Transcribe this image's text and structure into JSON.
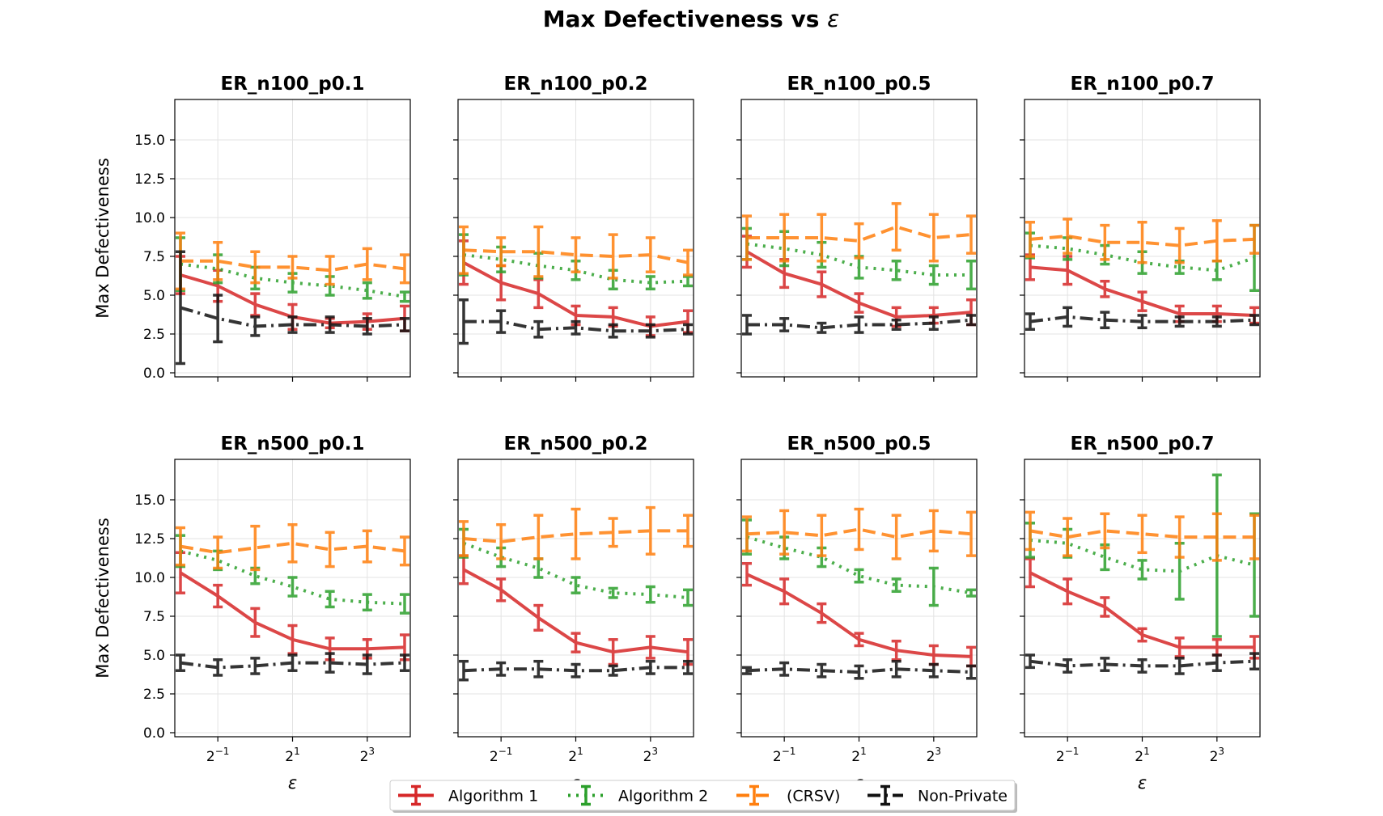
{
  "figure": {
    "suptitle_text": "Max Defectiveness vs ",
    "suptitle_symbol": "ε"
  },
  "colors": {
    "Algorithm 1": "#d62728",
    "Algorithm 2": "#2ca02c",
    "(CRSV)": "#ff7f0e",
    "Non-Private": "#111111",
    "grid": "#e3e3e3"
  },
  "legend": {
    "placement": "bottom-center",
    "entries": [
      {
        "label": "Algorithm 1",
        "dash": "solid"
      },
      {
        "label": "Algorithm 2",
        "dash": "dotted"
      },
      {
        "label": "(CRSV)",
        "dash": "dashed"
      },
      {
        "label": "Non-Private",
        "dash": "dashdot"
      }
    ]
  },
  "chart_data": [
    {
      "type": "line",
      "title": "ER_n100_p0.1",
      "xlabel": "ε",
      "ylabel": "Max Defectiveness",
      "x_log2": [
        -2,
        -1,
        0,
        1,
        2,
        3,
        4
      ],
      "xtick_exponents": [
        -1,
        1,
        3
      ],
      "ylim": [
        0,
        17.5
      ],
      "yticks": [
        "0.0",
        "2.5",
        "5.0",
        "7.5",
        "10.0",
        "12.5",
        "15.0"
      ],
      "grid": true,
      "series": [
        {
          "name": "Algorithm 1",
          "values": [
            6.3,
            5.6,
            4.4,
            3.6,
            3.2,
            3.3,
            3.5
          ],
          "err": [
            1.2,
            1.0,
            0.7,
            0.8,
            0.3,
            0.5,
            0.8
          ]
        },
        {
          "name": "Algorithm 2",
          "values": [
            7.0,
            6.7,
            6.1,
            5.8,
            5.6,
            5.3,
            4.9
          ],
          "err": [
            1.7,
            0.9,
            0.7,
            0.6,
            0.6,
            0.5,
            0.3
          ]
        },
        {
          "name": "(CRSV)",
          "values": [
            7.2,
            7.2,
            6.8,
            6.8,
            6.6,
            7.0,
            6.7
          ],
          "err": [
            1.8,
            1.2,
            1.0,
            0.7,
            0.9,
            1.0,
            0.9
          ]
        },
        {
          "name": "Non-Private",
          "values": [
            4.2,
            3.5,
            3.0,
            3.1,
            3.1,
            3.0,
            3.1
          ],
          "err": [
            3.6,
            1.5,
            0.6,
            0.5,
            0.5,
            0.5,
            0.4
          ]
        }
      ]
    },
    {
      "type": "line",
      "title": "ER_n100_p0.2",
      "xlabel": "ε",
      "ylabel": "Max Defectiveness",
      "x_log2": [
        -2,
        -1,
        0,
        1,
        2,
        3,
        4
      ],
      "xtick_exponents": [
        -1,
        1,
        3
      ],
      "ylim": [
        0,
        17.5
      ],
      "yticks": [
        "0.0",
        "2.5",
        "5.0",
        "7.5",
        "10.0",
        "12.5",
        "15.0"
      ],
      "grid": true,
      "series": [
        {
          "name": "Algorithm 1",
          "values": [
            7.1,
            5.8,
            5.1,
            3.7,
            3.6,
            3.0,
            3.3
          ],
          "err": [
            1.4,
            1.1,
            0.9,
            0.6,
            0.6,
            0.6,
            0.7
          ]
        },
        {
          "name": "Algorithm 2",
          "values": [
            7.6,
            7.3,
            6.9,
            6.6,
            6.0,
            5.8,
            5.9
          ],
          "err": [
            1.3,
            0.8,
            0.8,
            0.6,
            0.6,
            0.4,
            0.3
          ]
        },
        {
          "name": "(CRSV)",
          "values": [
            7.9,
            7.8,
            7.8,
            7.6,
            7.5,
            7.6,
            7.1
          ],
          "err": [
            1.5,
            0.9,
            1.6,
            1.1,
            1.4,
            1.1,
            0.8
          ]
        },
        {
          "name": "Non-Private",
          "values": [
            3.3,
            3.3,
            2.8,
            2.9,
            2.7,
            2.7,
            2.8
          ],
          "err": [
            1.4,
            0.7,
            0.5,
            0.4,
            0.4,
            0.4,
            0.3
          ]
        }
      ]
    },
    {
      "type": "line",
      "title": "ER_n100_p0.5",
      "xlabel": "ε",
      "ylabel": "Max Defectiveness",
      "x_log2": [
        -2,
        -1,
        0,
        1,
        2,
        3,
        4
      ],
      "xtick_exponents": [
        -1,
        1,
        3
      ],
      "ylim": [
        0,
        17.5
      ],
      "yticks": [
        "0.0",
        "2.5",
        "5.0",
        "7.5",
        "10.0",
        "12.5",
        "15.0"
      ],
      "grid": true,
      "series": [
        {
          "name": "Algorithm 1",
          "values": [
            7.8,
            6.4,
            5.7,
            4.5,
            3.6,
            3.7,
            3.9
          ],
          "err": [
            1.0,
            0.9,
            0.8,
            0.6,
            0.6,
            0.5,
            0.8
          ]
        },
        {
          "name": "Algorithm 2",
          "values": [
            8.3,
            8.0,
            7.6,
            6.8,
            6.6,
            6.3,
            6.3
          ],
          "err": [
            1.0,
            1.1,
            0.8,
            0.7,
            0.6,
            0.6,
            0.9
          ]
        },
        {
          "name": "(CRSV)",
          "values": [
            8.7,
            8.7,
            8.7,
            8.5,
            9.4,
            8.7,
            8.9
          ],
          "err": [
            1.4,
            1.5,
            1.5,
            1.1,
            1.5,
            1.5,
            1.2
          ]
        },
        {
          "name": "Non-Private",
          "values": [
            3.1,
            3.1,
            2.9,
            3.1,
            3.1,
            3.2,
            3.4
          ],
          "err": [
            0.6,
            0.4,
            0.3,
            0.5,
            0.3,
            0.4,
            0.3
          ]
        }
      ]
    },
    {
      "type": "line",
      "title": "ER_n100_p0.7",
      "xlabel": "ε",
      "ylabel": "Max Defectiveness",
      "x_log2": [
        -2,
        -1,
        0,
        1,
        2,
        3,
        4
      ],
      "xtick_exponents": [
        -1,
        1,
        3
      ],
      "ylim": [
        0,
        17.5
      ],
      "yticks": [
        "0.0",
        "2.5",
        "5.0",
        "7.5",
        "10.0",
        "12.5",
        "15.0"
      ],
      "grid": true,
      "series": [
        {
          "name": "Algorithm 1",
          "values": [
            6.8,
            6.6,
            5.4,
            4.6,
            3.8,
            3.8,
            3.7
          ],
          "err": [
            0.8,
            0.9,
            0.5,
            0.6,
            0.5,
            0.5,
            0.5
          ]
        },
        {
          "name": "Algorithm 2",
          "values": [
            8.2,
            8.0,
            7.6,
            7.1,
            6.8,
            6.6,
            7.4
          ],
          "err": [
            0.8,
            0.7,
            0.6,
            0.7,
            0.4,
            0.6,
            2.1
          ]
        },
        {
          "name": "(CRSV)",
          "values": [
            8.6,
            8.8,
            8.4,
            8.4,
            8.2,
            8.5,
            8.6
          ],
          "err": [
            1.1,
            1.1,
            1.1,
            1.3,
            1.1,
            1.3,
            0.9
          ]
        },
        {
          "name": "Non-Private",
          "values": [
            3.3,
            3.6,
            3.4,
            3.3,
            3.3,
            3.3,
            3.4
          ],
          "err": [
            0.5,
            0.6,
            0.5,
            0.4,
            0.3,
            0.3,
            0.3
          ]
        }
      ]
    },
    {
      "type": "line",
      "title": "ER_n500_p0.1",
      "xlabel": "ε",
      "ylabel": "Max Defectiveness",
      "x_log2": [
        -2,
        -1,
        0,
        1,
        2,
        3,
        4
      ],
      "xtick_exponents": [
        -1,
        1,
        3
      ],
      "ylim": [
        0,
        17.5
      ],
      "yticks": [
        "0.0",
        "2.5",
        "5.0",
        "7.5",
        "10.0",
        "12.5",
        "15.0"
      ],
      "grid": true,
      "series": [
        {
          "name": "Algorithm 1",
          "values": [
            10.3,
            8.8,
            7.1,
            6.0,
            5.4,
            5.4,
            5.5
          ],
          "err": [
            1.3,
            0.7,
            0.9,
            0.9,
            0.7,
            0.6,
            0.8
          ]
        },
        {
          "name": "Algorithm 2",
          "values": [
            11.7,
            11.1,
            10.1,
            9.4,
            8.6,
            8.4,
            8.3
          ],
          "err": [
            1.0,
            0.6,
            0.5,
            0.6,
            0.5,
            0.5,
            0.6
          ]
        },
        {
          "name": "(CRSV)",
          "values": [
            12.0,
            11.6,
            11.9,
            12.2,
            11.8,
            12.0,
            11.7
          ],
          "err": [
            1.2,
            1.0,
            1.4,
            1.2,
            1.1,
            1.0,
            0.9
          ]
        },
        {
          "name": "Non-Private",
          "values": [
            4.5,
            4.2,
            4.3,
            4.5,
            4.5,
            4.4,
            4.5
          ],
          "err": [
            0.5,
            0.5,
            0.5,
            0.5,
            0.6,
            0.6,
            0.5
          ]
        }
      ]
    },
    {
      "type": "line",
      "title": "ER_n500_p0.2",
      "xlabel": "ε",
      "ylabel": "Max Defectiveness",
      "x_log2": [
        -2,
        -1,
        0,
        1,
        2,
        3,
        4
      ],
      "xtick_exponents": [
        -1,
        1,
        3
      ],
      "ylim": [
        0,
        17.5
      ],
      "yticks": [
        "0.0",
        "2.5",
        "5.0",
        "7.5",
        "10.0",
        "12.5",
        "15.0"
      ],
      "grid": true,
      "series": [
        {
          "name": "Algorithm 1",
          "values": [
            10.5,
            9.2,
            7.4,
            5.8,
            5.2,
            5.5,
            5.2
          ],
          "err": [
            0.9,
            0.7,
            0.8,
            0.6,
            0.8,
            0.7,
            0.8
          ]
        },
        {
          "name": "Algorithm 2",
          "values": [
            12.2,
            11.3,
            10.6,
            9.5,
            9.0,
            8.9,
            8.7
          ],
          "err": [
            0.9,
            0.6,
            0.6,
            0.5,
            0.3,
            0.5,
            0.5
          ]
        },
        {
          "name": "(CRSV)",
          "values": [
            12.5,
            12.3,
            12.6,
            12.8,
            12.9,
            13.0,
            13.0
          ],
          "err": [
            1.1,
            1.1,
            1.4,
            1.6,
            0.9,
            1.5,
            1.0
          ]
        },
        {
          "name": "Non-Private",
          "values": [
            4.0,
            4.1,
            4.1,
            4.0,
            4.0,
            4.2,
            4.2
          ],
          "err": [
            0.6,
            0.4,
            0.5,
            0.4,
            0.3,
            0.4,
            0.4
          ]
        }
      ]
    },
    {
      "type": "line",
      "title": "ER_n500_p0.5",
      "xlabel": "ε",
      "ylabel": "Max Defectiveness",
      "x_log2": [
        -2,
        -1,
        0,
        1,
        2,
        3,
        4
      ],
      "xtick_exponents": [
        -1,
        1,
        3
      ],
      "ylim": [
        0,
        17.5
      ],
      "yticks": [
        "0.0",
        "2.5",
        "5.0",
        "7.5",
        "10.0",
        "12.5",
        "15.0"
      ],
      "grid": true,
      "series": [
        {
          "name": "Algorithm 1",
          "values": [
            10.2,
            9.1,
            7.7,
            6.0,
            5.3,
            5.0,
            4.9
          ],
          "err": [
            0.7,
            0.8,
            0.6,
            0.4,
            0.6,
            0.6,
            0.6
          ]
        },
        {
          "name": "Algorithm 2",
          "values": [
            12.6,
            11.9,
            11.3,
            10.1,
            9.5,
            9.4,
            9.0
          ],
          "err": [
            1.1,
            0.7,
            0.6,
            0.4,
            0.4,
            1.2,
            0.2
          ]
        },
        {
          "name": "(CRSV)",
          "values": [
            12.8,
            12.9,
            12.7,
            13.1,
            12.6,
            13.0,
            12.8
          ],
          "err": [
            1.1,
            1.4,
            1.3,
            1.3,
            1.4,
            1.3,
            1.4
          ]
        },
        {
          "name": "Non-Private",
          "values": [
            4.0,
            4.1,
            4.0,
            3.9,
            4.1,
            4.0,
            3.9
          ],
          "err": [
            0.2,
            0.4,
            0.4,
            0.4,
            0.5,
            0.4,
            0.4
          ]
        }
      ]
    },
    {
      "type": "line",
      "title": "ER_n500_p0.7",
      "xlabel": "ε",
      "ylabel": "Max Defectiveness",
      "x_log2": [
        -2,
        -1,
        0,
        1,
        2,
        3,
        4
      ],
      "xtick_exponents": [
        -1,
        1,
        3
      ],
      "ylim": [
        0,
        17.5
      ],
      "yticks": [
        "0.0",
        "2.5",
        "5.0",
        "7.5",
        "10.0",
        "12.5",
        "15.0"
      ],
      "grid": true,
      "series": [
        {
          "name": "Algorithm 1",
          "values": [
            10.3,
            9.1,
            8.1,
            6.3,
            5.5,
            5.5,
            5.5
          ],
          "err": [
            0.9,
            0.8,
            0.6,
            0.4,
            0.6,
            0.5,
            0.7
          ]
        },
        {
          "name": "Algorithm 2",
          "values": [
            12.4,
            12.2,
            11.3,
            10.5,
            10.4,
            11.4,
            10.8
          ],
          "err": [
            1.1,
            0.9,
            0.8,
            0.6,
            1.8,
            5.2,
            3.3
          ]
        },
        {
          "name": "(CRSV)",
          "values": [
            13.0,
            12.6,
            13.0,
            12.8,
            12.6,
            12.6,
            12.6
          ],
          "err": [
            1.2,
            1.2,
            1.1,
            1.2,
            1.3,
            1.5,
            1.4
          ]
        },
        {
          "name": "Non-Private",
          "values": [
            4.6,
            4.3,
            4.4,
            4.3,
            4.3,
            4.5,
            4.6
          ],
          "err": [
            0.4,
            0.4,
            0.4,
            0.4,
            0.5,
            0.5,
            0.5
          ]
        }
      ]
    }
  ]
}
